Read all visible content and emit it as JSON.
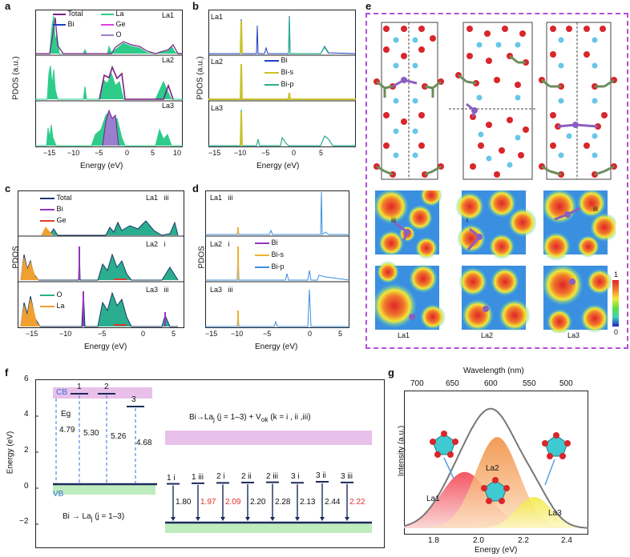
{
  "panels": {
    "a": {
      "label": "a",
      "ylabel": "PDOS (a.u.)",
      "xlabel": "Energy (eV)",
      "xticks": [
        "−15",
        "−10",
        "−5",
        "0",
        "5",
        "10"
      ],
      "legend": [
        {
          "name": "Total",
          "color": "#7b1f86"
        },
        {
          "name": "La",
          "color": "#2ecc8a"
        },
        {
          "name": "Bi",
          "color": "#1f3fbf"
        },
        {
          "name": "Ge",
          "color": "#e040e0"
        },
        {
          "name": "O",
          "color": "#9b7fcf"
        }
      ],
      "rows": [
        "La1",
        "La2",
        "La3"
      ]
    },
    "b": {
      "label": "b",
      "ylabel": "PDOS (a.u.)",
      "xlabel": "Energy (eV)",
      "xticks": [
        "−15",
        "−10",
        "−5",
        "0",
        "5"
      ],
      "legend": [
        {
          "name": "Bi",
          "color": "#1f3fbf"
        },
        {
          "name": "Bi-s",
          "color": "#c9c22a"
        },
        {
          "name": "Bi-p",
          "color": "#2aae8f"
        }
      ],
      "rows": [
        "La1",
        "La2",
        "La3"
      ]
    },
    "c": {
      "label": "c",
      "ylabel": "PDOS",
      "xlabel": "Energy (eV)",
      "xticks": [
        "−15",
        "−10",
        "−5",
        "0",
        "5"
      ],
      "legend_top": [
        {
          "name": "Total",
          "color": "#1b3a6b"
        },
        {
          "name": "Bi",
          "color": "#9b30c0"
        },
        {
          "name": "Ge",
          "color": "#e03a2a"
        }
      ],
      "legend_bottom": [
        {
          "name": "O",
          "color": "#2aae8f"
        },
        {
          "name": "La",
          "color": "#f0a030"
        }
      ],
      "rows": [
        {
          "site": "La1",
          "vac": "iii"
        },
        {
          "site": "La2",
          "vac": "i"
        },
        {
          "site": "La3",
          "vac": "iii"
        }
      ]
    },
    "d": {
      "label": "d",
      "ylabel": "PDOS",
      "xlabel": "Energy (eV)",
      "xticks": [
        "−15",
        "−10",
        "−5",
        "0",
        "5"
      ],
      "legend": [
        {
          "name": "Bi",
          "color": "#9b30c0"
        },
        {
          "name": "Bi-s",
          "color": "#f0b030"
        },
        {
          "name": "Bi-p",
          "color": "#3a8fe0"
        }
      ],
      "rows": [
        {
          "site": "La1",
          "vac": "iii"
        },
        {
          "site": "La2",
          "vac": "i"
        },
        {
          "site": "La3",
          "vac": "iii"
        }
      ]
    },
    "e": {
      "label": "e",
      "colorbar_max": "1",
      "colorbar_min": "0",
      "map_labels_top": [
        "iii",
        "i",
        "iii"
      ],
      "sites": [
        "La1",
        "La2",
        "La3"
      ]
    },
    "f": {
      "label": "f",
      "ylabel": "Energy (eV)",
      "yticks": [
        "6",
        "4",
        "2",
        "0",
        "−2"
      ],
      "cb": "CB",
      "vb": "VB",
      "eg": "Eg",
      "levels_left": [
        {
          "id": "1",
          "gap": "4.79"
        },
        {
          "id": "2",
          "gap": "5.30"
        },
        {
          "id": "3",
          "gap": "5.26"
        },
        {
          "id": "",
          "gap": "4.68"
        }
      ],
      "caption_left": "Bi → La",
      "caption_left_sub": "j",
      "caption_left_tail": " (j = 1–3)",
      "caption_right": "Bi→La",
      "caption_right_sub": "j",
      "caption_right_tail": " (j = 1–3) + V",
      "caption_right_sub2": "ok",
      "caption_right_tail2": " (k = i , ii ,iii)",
      "levels_right": [
        {
          "id": "1 i",
          "gap": "1.80",
          "color": "#111111"
        },
        {
          "id": "1 iii",
          "gap": "1.97",
          "color": "#e0302a"
        },
        {
          "id": "2 i",
          "gap": "2.09",
          "color": "#e0302a"
        },
        {
          "id": "2 ii",
          "gap": "2.20",
          "color": "#111111"
        },
        {
          "id": "2 iii",
          "gap": "2.28",
          "color": "#111111"
        },
        {
          "id": "3 i",
          "gap": "2.13",
          "color": "#111111"
        },
        {
          "id": "3 ii",
          "gap": "2.44",
          "color": "#111111"
        },
        {
          "id": "3 iii",
          "gap": "2.22",
          "color": "#e0302a"
        }
      ]
    },
    "g": {
      "label": "g",
      "top_xlabel": "Wavelength (nm)",
      "top_ticks": [
        "700",
        "650",
        "600",
        "550",
        "500"
      ],
      "ylabel": "Intensity (a.u.)",
      "xlabel": "Energy (eV)",
      "xticks": [
        "1.8",
        "2.0",
        "2.2",
        "2.4"
      ],
      "peaks": [
        "La1",
        "La2",
        "La3"
      ]
    }
  },
  "chart_data": [
    {
      "type": "area",
      "title": "g",
      "xlabel": "Energy (eV)",
      "ylabel": "Intensity (a.u.)",
      "xlim": [
        1.65,
        2.5
      ],
      "series": [
        {
          "name": "La1",
          "center": 1.93,
          "width": 0.11,
          "height": 0.45
        },
        {
          "name": "La2",
          "center": 2.08,
          "width": 0.1,
          "height": 0.73
        },
        {
          "name": "La3",
          "center": 2.25,
          "width": 0.08,
          "height": 0.25
        }
      ]
    },
    {
      "type": "bar",
      "title": "f (right)",
      "categories": [
        "1 i",
        "1 iii",
        "2 i",
        "2 ii",
        "2 iii",
        "3 i",
        "3 ii",
        "3 iii"
      ],
      "values": [
        1.8,
        1.97,
        2.09,
        2.2,
        2.28,
        2.13,
        2.44,
        2.22
      ]
    },
    {
      "type": "bar",
      "title": "f (left)",
      "categories": [
        "1",
        "2",
        "3",
        ""
      ],
      "values": [
        4.79,
        5.3,
        5.26,
        4.68
      ]
    }
  ]
}
